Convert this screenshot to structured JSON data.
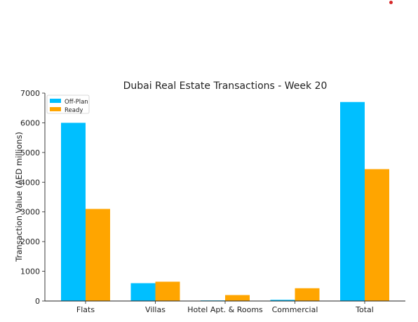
{
  "colors": {
    "off_plan": "#00bfff",
    "ready": "#ffa500",
    "marker": "#d62728"
  },
  "chart_data": {
    "type": "bar",
    "title": "Dubai Real Estate Transactions - Week 20",
    "xlabel": "",
    "ylabel": "Transaction Value (AED millions)",
    "categories": [
      "Flats",
      "Villas",
      "Hotel Apt. & Rooms",
      "Commercial",
      "Total"
    ],
    "series": [
      {
        "name": "Off-Plan",
        "values": [
          6000,
          600,
          20,
          40,
          6700
        ]
      },
      {
        "name": "Ready",
        "values": [
          3100,
          650,
          200,
          430,
          4440
        ]
      }
    ],
    "ylim": [
      0,
      7000
    ],
    "yticks": [
      "0",
      "1000",
      "2000",
      "3000",
      "4000",
      "5000",
      "6000",
      "7000"
    ],
    "grid": false,
    "legend": "top-left"
  }
}
